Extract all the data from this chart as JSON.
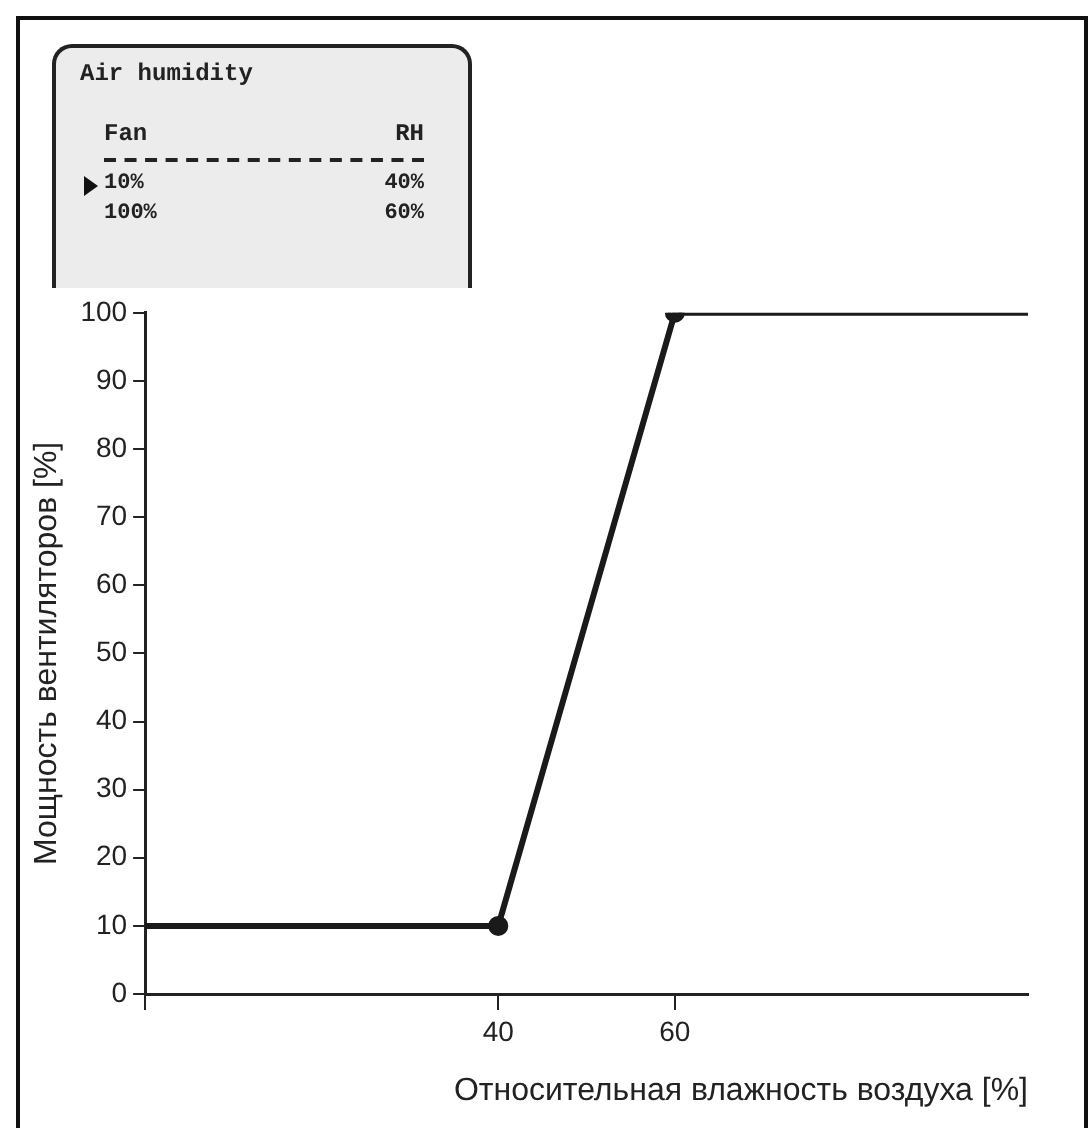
{
  "chart_data": {
    "type": "line",
    "xlabel": "Относительная влажность воздуха [%]",
    "ylabel": "Мощность вентиляторов [%]",
    "x": [
      0,
      40,
      60,
      100
    ],
    "series": [
      {
        "color": "#1a1a1a",
        "values": [
          10,
          10,
          100,
          100
        ]
      }
    ],
    "xlim": [
      0,
      100
    ],
    "xticks": [
      {
        "value": 0,
        "label": null
      },
      40,
      60
    ],
    "ylim": [
      0,
      100
    ],
    "yticks": [
      0,
      10,
      20,
      30,
      40,
      50,
      60,
      70,
      80,
      90,
      100
    ],
    "marker": "circle",
    "line_style": "solid",
    "annotations": [
      "Air humidity",
      "Fan",
      "RH",
      "10%",
      "40%",
      "100%",
      "60%"
    ]
  }
}
